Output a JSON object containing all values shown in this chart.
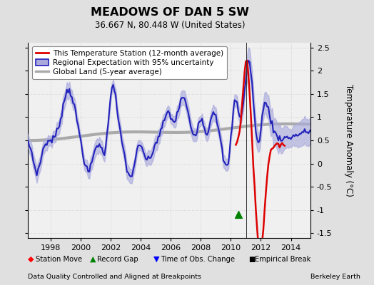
{
  "title": "MEADOWS OF DAN 5 SW",
  "subtitle": "36.667 N, 80.448 W (United States)",
  "ylabel": "Temperature Anomaly (°C)",
  "footnote_left": "Data Quality Controlled and Aligned at Breakpoints",
  "footnote_right": "Berkeley Earth",
  "xlim": [
    1996.5,
    2015.3
  ],
  "ylim": [
    -1.6,
    2.6
  ],
  "yticks": [
    -1.5,
    -1.0,
    -0.5,
    0.0,
    0.5,
    1.0,
    1.5,
    2.0,
    2.5
  ],
  "xticks": [
    1998,
    2000,
    2002,
    2004,
    2006,
    2008,
    2010,
    2012,
    2014
  ],
  "background_color": "#e0e0e0",
  "plot_bg_color": "#f0f0f0",
  "regional_color": "#2222bb",
  "regional_fill_color": "#aaaadd",
  "station_color": "#dd0000",
  "global_color": "#aaaaaa",
  "global_linewidth": 3.0,
  "regional_linewidth": 1.5,
  "station_linewidth": 1.8,
  "vertical_line_x": 2011.05,
  "record_gap_x": 2010.5,
  "record_gap_y": -1.1,
  "legend_items": [
    "This Temperature Station (12-month average)",
    "Regional Expectation with 95% uncertainty",
    "Global Land (5-year average)"
  ],
  "bottom_legend": [
    "Station Move",
    "Record Gap",
    "Time of Obs. Change",
    "Empirical Break"
  ]
}
